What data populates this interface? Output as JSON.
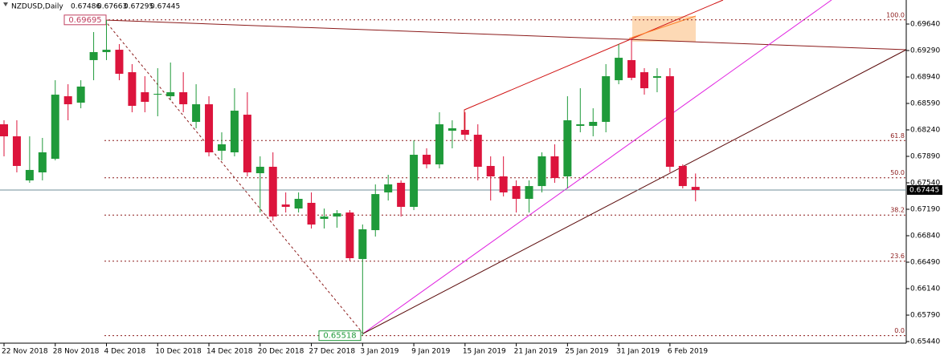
{
  "chart_data": {
    "type": "candlestick",
    "title": "NZDUSD,Daily",
    "up_color": "#1f9a3a",
    "down_color": "#dc143c",
    "categories": [
      "22 Nov 2018",
      null,
      null,
      null,
      "28 Nov 2018",
      null,
      null,
      null,
      "4 Dec 2018",
      null,
      null,
      null,
      "10 Dec 2018",
      null,
      null,
      null,
      "14 Dec 2018",
      null,
      null,
      null,
      "20 Dec 2018",
      null,
      null,
      null,
      "27 Dec 2018",
      null,
      null,
      null,
      "3 Jan 2019",
      null,
      null,
      null,
      "9 Jan 2019",
      null,
      null,
      null,
      "15 Jan 2019",
      null,
      null,
      null,
      "21 Jan 2019",
      null,
      null,
      null,
      "25 Jan 2019",
      null,
      null,
      null,
      "31 Jan 2019",
      null,
      null,
      null,
      "6 Feb 2019",
      null,
      null
    ],
    "ohlc": [
      [
        0.68314,
        0.68367,
        0.6789,
        0.68155
      ],
      [
        0.68155,
        0.68367,
        0.67678,
        0.67763
      ],
      [
        0.67572,
        0.68155,
        0.6754,
        0.6771
      ],
      [
        0.67678,
        0.68134,
        0.67572,
        0.67943
      ],
      [
        0.67858,
        0.68897,
        0.67837,
        0.68706
      ],
      [
        0.68685,
        0.68844,
        0.68367,
        0.68579
      ],
      [
        0.686,
        0.68897,
        0.68526,
        0.68813
      ],
      [
        0.69163,
        0.69534,
        0.68897,
        0.69269
      ],
      [
        0.69269,
        0.69695,
        0.69163,
        0.693
      ],
      [
        0.693,
        0.69375,
        0.68897,
        0.68982
      ],
      [
        0.69003,
        0.6911,
        0.68473,
        0.68558
      ],
      [
        0.68738,
        0.6895,
        0.68473,
        0.68611
      ],
      [
        0.68706,
        0.69056,
        0.6842,
        0.68717
      ],
      [
        0.68685,
        0.69131,
        0.68632,
        0.68738
      ],
      [
        0.68738,
        0.69003,
        0.68473,
        0.68579
      ],
      [
        0.68346,
        0.68844,
        0.68261,
        0.68579
      ],
      [
        0.68579,
        0.68685,
        0.6789,
        0.67943
      ],
      [
        0.67964,
        0.68208,
        0.67837,
        0.68049
      ],
      [
        0.67943,
        0.68791,
        0.6789,
        0.68494
      ],
      [
        0.68441,
        0.68738,
        0.67625,
        0.67678
      ],
      [
        0.67667,
        0.6789,
        0.67147,
        0.67752
      ],
      [
        0.67752,
        0.67943,
        0.67041,
        0.67094
      ],
      [
        0.67253,
        0.67413,
        0.67147,
        0.67222
      ],
      [
        0.672,
        0.67413,
        0.67147,
        0.67328
      ],
      [
        0.67275,
        0.67413,
        0.66935,
        0.66988
      ],
      [
        0.67063,
        0.672,
        0.66935,
        0.67094
      ],
      [
        0.67094,
        0.67179,
        0.66946,
        0.67137
      ],
      [
        0.67147,
        0.67179,
        0.66511,
        0.66543
      ],
      [
        0.66532,
        0.66988,
        0.65518,
        0.66925
      ],
      [
        0.66914,
        0.67519,
        0.66829,
        0.67391
      ],
      [
        0.67413,
        0.67646,
        0.67306,
        0.67519
      ],
      [
        0.6754,
        0.67572,
        0.67094,
        0.67222
      ],
      [
        0.67222,
        0.68102,
        0.67179,
        0.67911
      ],
      [
        0.67911,
        0.67996,
        0.67731,
        0.67784
      ],
      [
        0.67784,
        0.68473,
        0.67731,
        0.68314
      ],
      [
        0.68229,
        0.68367,
        0.67996,
        0.68261
      ],
      [
        0.6824,
        0.68473,
        0.68102,
        0.68176
      ],
      [
        0.68176,
        0.68314,
        0.67572,
        0.67752
      ],
      [
        0.67763,
        0.6789,
        0.67306,
        0.67625
      ],
      [
        0.67625,
        0.6789,
        0.6736,
        0.67413
      ],
      [
        0.67497,
        0.67572,
        0.67147,
        0.67328
      ],
      [
        0.67328,
        0.67572,
        0.67147,
        0.67497
      ],
      [
        0.67497,
        0.67943,
        0.67413,
        0.6789
      ],
      [
        0.6789,
        0.68049,
        0.6754,
        0.67603
      ],
      [
        0.67625,
        0.68685,
        0.67466,
        0.68367
      ],
      [
        0.68293,
        0.68791,
        0.68208,
        0.68314
      ],
      [
        0.68293,
        0.68526,
        0.68155,
        0.68346
      ],
      [
        0.68346,
        0.6911,
        0.68208,
        0.6895
      ],
      [
        0.68897,
        0.69375,
        0.68844,
        0.69194
      ],
      [
        0.69163,
        0.69449,
        0.68897,
        0.68929
      ],
      [
        0.69003,
        0.69056,
        0.68706,
        0.68791
      ],
      [
        0.68929,
        0.69056,
        0.68738,
        0.6895
      ],
      [
        0.6895,
        0.69056,
        0.67678,
        0.67752
      ],
      [
        0.67763,
        0.67784,
        0.67466,
        0.67497
      ],
      [
        0.67486,
        0.67663,
        0.67295,
        0.67445
      ]
    ],
    "ylim": [
      0.65419,
      0.69958
    ],
    "yticks": [
      {
        "value": 0.6964,
        "label": "0.69640"
      },
      {
        "value": 0.6929,
        "label": "0.69290"
      },
      {
        "value": 0.6894,
        "label": "0.68940"
      },
      {
        "value": 0.6859,
        "label": "0.68590"
      },
      {
        "value": 0.6824,
        "label": "0.68240"
      },
      {
        "value": 0.6789,
        "label": "0.67890"
      },
      {
        "value": 0.6754,
        "label": "0.67540"
      },
      {
        "value": 0.6719,
        "label": "0.67190"
      },
      {
        "value": 0.6684,
        "label": "0.66840"
      },
      {
        "value": 0.6649,
        "label": "0.66490"
      },
      {
        "value": 0.6614,
        "label": "0.66140"
      },
      {
        "value": 0.6579,
        "label": "0.65790"
      },
      {
        "value": 0.6544,
        "label": "0.65440"
      }
    ],
    "fibonacci": {
      "from": 0.69695,
      "to": 0.65518,
      "levels": [
        {
          "value": 100,
          "label": "100.0"
        },
        {
          "value": 61.8,
          "label": "61.8"
        },
        {
          "value": 50,
          "label": "50.0"
        },
        {
          "value": 38.2,
          "label": "38.2"
        },
        {
          "value": 23.6,
          "label": "23.6"
        },
        {
          "value": 0,
          "label": "0.0"
        }
      ]
    }
  }
}
